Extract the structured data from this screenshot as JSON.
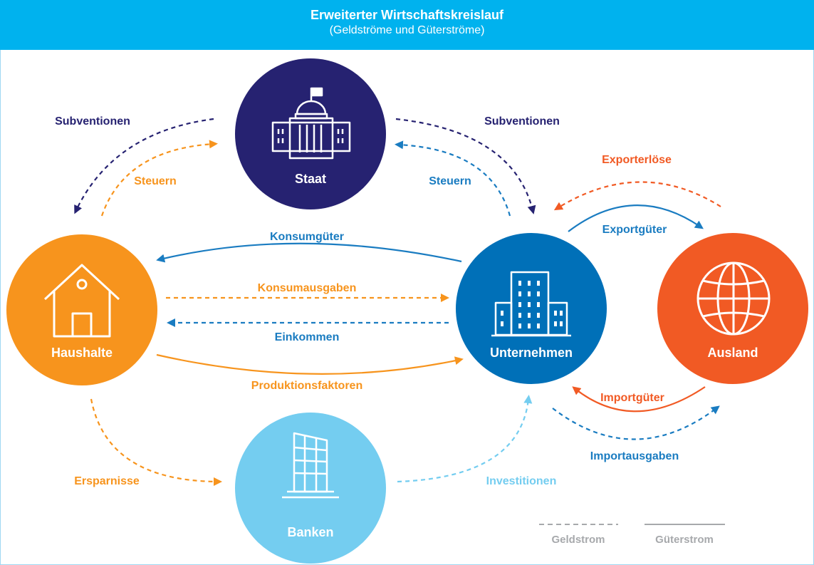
{
  "header": {
    "title": "Erweiterter Wirtschaftskreislauf",
    "subtitle": "(Geldströme und Güterströme)"
  },
  "colors": {
    "header": "#00b2ee",
    "staat": "#262271",
    "haushalte": "#f7941d",
    "unternehmen": "#0070b8",
    "ausland": "#f15a24",
    "banken": "#74cdf0",
    "legend": "#a7a9ac"
  },
  "nodes": {
    "staat": {
      "label": "Staat",
      "icon": "government-building-icon"
    },
    "haushalte": {
      "label": "Haushalte",
      "icon": "house-icon"
    },
    "unternehmen": {
      "label": "Unternehmen",
      "icon": "office-buildings-icon"
    },
    "ausland": {
      "label": "Ausland",
      "icon": "globe-icon"
    },
    "banken": {
      "label": "Banken",
      "icon": "bank-tower-icon"
    }
  },
  "flows": {
    "subventionen_haushalte": "Subventionen",
    "steuern_haushalte": "Steuern",
    "subventionen_unternehmen": "Subventionen",
    "steuern_unternehmen": "Steuern",
    "konsumgueter": "Konsumgüter",
    "konsumausgaben": "Konsumausgaben",
    "einkommen": "Einkommen",
    "produktionsfaktoren": "Produktionsfaktoren",
    "exporterloese": "Exporterlöse",
    "exportgueter": "Exportgüter",
    "importgueter": "Importgüter",
    "importausgaben": "Importausgaben",
    "ersparnisse": "Ersparnisse",
    "investitionen": "Investitionen"
  },
  "legend": {
    "geldstrom": "Geldstrom",
    "gueterstrom": "Güterstrom"
  }
}
